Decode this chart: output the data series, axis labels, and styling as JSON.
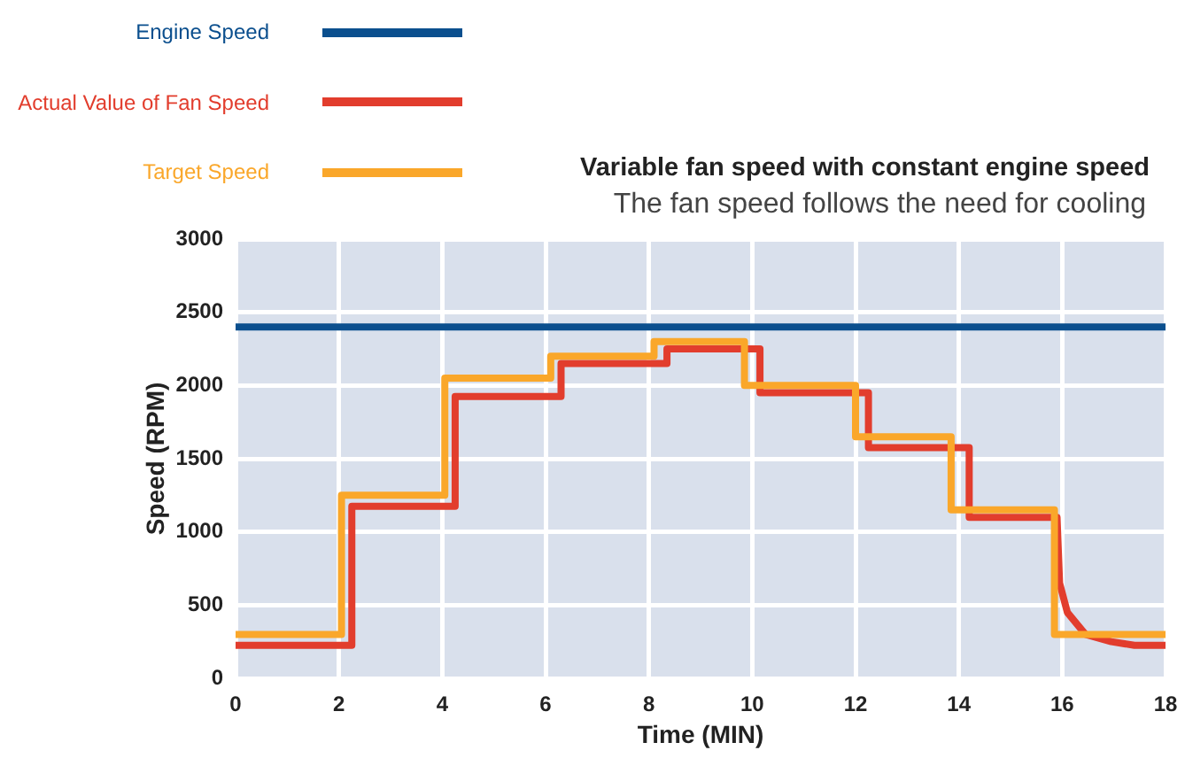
{
  "chart_data": {
    "type": "line",
    "title": "Variable fan speed with constant engine speed",
    "subtitle": "The fan speed follows the need for cooling",
    "xlabel": "Time (MIN)",
    "ylabel": "Speed (RPM)",
    "xlim": [
      0,
      18
    ],
    "xticks": [
      0,
      2,
      4,
      6,
      8,
      10,
      12,
      14,
      16,
      18
    ],
    "ylim": [
      0,
      3000
    ],
    "yticks": [
      0,
      500,
      1000,
      1500,
      2000,
      2500,
      3000
    ],
    "grid": true,
    "legend": "top left",
    "marker": "none",
    "line_style": "solid",
    "series": [
      {
        "name": "Engine Speed",
        "color": "#0b4f8e",
        "type": "line",
        "x": [
          0,
          18
        ],
        "values": [
          2400,
          2400
        ]
      },
      {
        "name": "Actual Value of Fan Speed",
        "color": "#e23d2d",
        "type": "line",
        "x": [
          0,
          2.25,
          2.25,
          4.25,
          4.25,
          6.3,
          6.3,
          8.35,
          8.35,
          10.15,
          10.15,
          12.25,
          12.25,
          14.2,
          14.2,
          15.9,
          15.95,
          16.1,
          16.45,
          16.95,
          17.4,
          18
        ],
        "values": [
          225,
          225,
          1175,
          1175,
          1925,
          1925,
          2150,
          2150,
          2250,
          2250,
          1950,
          1950,
          1575,
          1575,
          1100,
          1100,
          650,
          450,
          300,
          250,
          225,
          225
        ]
      },
      {
        "name": "Target Speed",
        "color": "#faa72a",
        "type": "step",
        "x": [
          0,
          2.05,
          4.05,
          6.1,
          8.1,
          9.85,
          12,
          13.85,
          15.85,
          18
        ],
        "values": [
          300,
          1250,
          2050,
          2200,
          2300,
          2000,
          1650,
          1150,
          300,
          300
        ]
      }
    ]
  }
}
